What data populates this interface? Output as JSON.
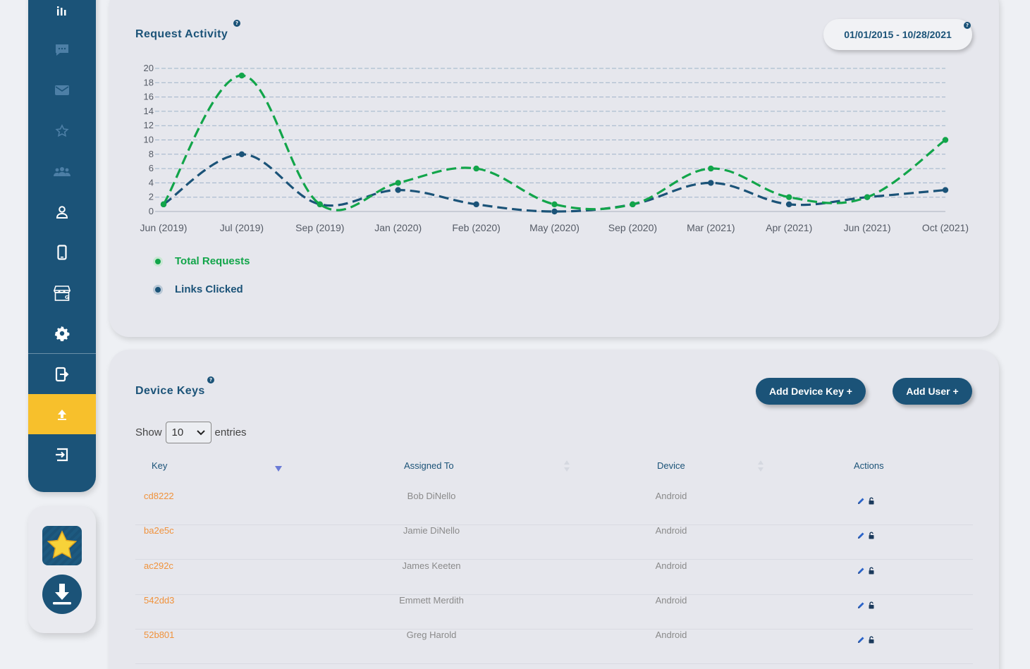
{
  "sidebar": {
    "items": [
      {
        "name": "sidebar-item-stats",
        "icon": "bar-chart-icon"
      },
      {
        "name": "sidebar-item-messages",
        "icon": "chat-icon"
      },
      {
        "name": "sidebar-item-mail",
        "icon": "mail-icon"
      },
      {
        "name": "sidebar-item-favorites",
        "icon": "star-icon"
      },
      {
        "name": "sidebar-item-groups",
        "icon": "users-icon"
      },
      {
        "name": "sidebar-item-profile",
        "icon": "user-icon"
      },
      {
        "name": "sidebar-item-devices",
        "icon": "phone-icon"
      },
      {
        "name": "sidebar-item-store",
        "icon": "store-icon"
      },
      {
        "name": "sidebar-item-settings",
        "icon": "gear-icon"
      },
      {
        "name": "sidebar-item-export",
        "icon": "export-icon"
      },
      {
        "name": "sidebar-item-upload",
        "icon": "upload-icon",
        "active": true
      },
      {
        "name": "sidebar-item-logout",
        "icon": "logout-icon"
      }
    ],
    "active_color": "#f7c02c",
    "bg_color": "#1b5378"
  },
  "quick_panel": {
    "items": [
      {
        "name": "favorite-app",
        "icon": "star-icon"
      },
      {
        "name": "download-app",
        "icon": "download-icon"
      }
    ]
  },
  "activity": {
    "title": "Request Activity",
    "help": "?",
    "date_range": "01/01/2015 - 10/28/2021",
    "legend": [
      {
        "label": "Total Requests",
        "color": "#12a54a"
      },
      {
        "label": "Links Clicked",
        "color": "#1b5378"
      }
    ]
  },
  "chart_data": {
    "type": "line",
    "title": "Request Activity",
    "categories": [
      "Jun (2019)",
      "Jul (2019)",
      "Sep (2019)",
      "Jan (2020)",
      "Feb (2020)",
      "May (2020)",
      "Sep (2020)",
      "Mar (2021)",
      "Apr (2021)",
      "Jun (2021)",
      "Oct (2021)"
    ],
    "series": [
      {
        "name": "Total Requests",
        "color": "#12a54a",
        "values": [
          1,
          19,
          1,
          4,
          6,
          1,
          1,
          6,
          2,
          2,
          10
        ]
      },
      {
        "name": "Links Clicked",
        "color": "#1b5378",
        "values": [
          1,
          8,
          1,
          3,
          1,
          0,
          1,
          4,
          1,
          2,
          3
        ]
      }
    ],
    "ylim": [
      0,
      20
    ],
    "yticks": [
      0,
      2,
      4,
      6,
      8,
      10,
      12,
      14,
      16,
      18,
      20
    ],
    "grid": true,
    "line_style": "dashed",
    "legend_position": "bottom-left"
  },
  "device_keys": {
    "title": "Device Keys",
    "help": "?",
    "add_device_key_label": "Add Device Key +",
    "add_user_label": "Add User +",
    "show_label": "Show",
    "entries_label": "entries",
    "page_size": "10",
    "columns": [
      "Key",
      "Assigned To",
      "Device",
      "Actions"
    ],
    "rows": [
      {
        "key": "cd8222",
        "assigned_to": "Bob DiNello",
        "device": "Android"
      },
      {
        "key": "ba2e5c",
        "assigned_to": "Jamie DiNello",
        "device": "Android"
      },
      {
        "key": "ac292c",
        "assigned_to": "James Keeten",
        "device": "Android"
      },
      {
        "key": "542dd3",
        "assigned_to": "Emmett Merdith",
        "device": "Android"
      },
      {
        "key": "52b801",
        "assigned_to": "Greg Harold",
        "device": "Android"
      }
    ],
    "key_color": "#f0923b"
  }
}
